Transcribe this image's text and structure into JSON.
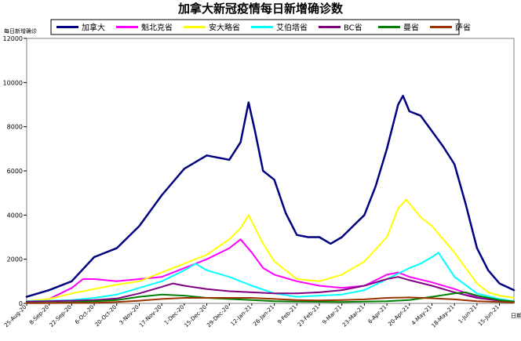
{
  "chart_data": {
    "type": "line",
    "title": "加拿大新冠疫情每日新增确诊数",
    "ylabel": "每日新增确诊",
    "xlabel": "日期",
    "ylim": [
      0,
      12000
    ],
    "yticks": [
      0,
      2000,
      4000,
      6000,
      8000,
      10000,
      12000
    ],
    "x_start": "25-Aug-20",
    "x_end": "24-Jun-21",
    "xtick_labels": [
      "25-Aug-20",
      "8-Sep-20",
      "22-Sep-20",
      "6-Oct-20",
      "20-Oct-20",
      "3-Nov-20",
      "17-Nov-20",
      "1-Dec-20",
      "15-Dec-20",
      "29-Dec-20",
      "12-Jan-21",
      "26-Jan-21",
      "9-Feb-21",
      "23-Feb-21",
      "9-Mar-21",
      "23-Mar-21",
      "6-Apr-21",
      "20-Apr-21",
      "4-May-21",
      "18-May-21",
      "1-Jun-21",
      "15-Jun-21"
    ],
    "grid": false,
    "legend_position": "top",
    "series": [
      {
        "name": "加拿大",
        "color": "#000080",
        "points": [
          [
            "25-Aug-20",
            300
          ],
          [
            "8-Sep-20",
            600
          ],
          [
            "22-Sep-20",
            1000
          ],
          [
            "6-Oct-20",
            2100
          ],
          [
            "20-Oct-20",
            2500
          ],
          [
            "3-Nov-20",
            3500
          ],
          [
            "17-Nov-20",
            4900
          ],
          [
            "1-Dec-20",
            6100
          ],
          [
            "15-Dec-20",
            6700
          ],
          [
            "29-Dec-20",
            6500
          ],
          [
            "5-Jan-21",
            7300
          ],
          [
            "10-Jan-21",
            9100
          ],
          [
            "14-Jan-21",
            7800
          ],
          [
            "19-Jan-21",
            6000
          ],
          [
            "26-Jan-21",
            5600
          ],
          [
            "2-Feb-21",
            4100
          ],
          [
            "9-Feb-21",
            3100
          ],
          [
            "16-Feb-21",
            3000
          ],
          [
            "23-Feb-21",
            3000
          ],
          [
            "2-Mar-21",
            2700
          ],
          [
            "9-Mar-21",
            3000
          ],
          [
            "16-Mar-21",
            3500
          ],
          [
            "23-Mar-21",
            4000
          ],
          [
            "30-Mar-21",
            5300
          ],
          [
            "6-Apr-21",
            7000
          ],
          [
            "13-Apr-21",
            9000
          ],
          [
            "16-Apr-21",
            9400
          ],
          [
            "20-Apr-21",
            8700
          ],
          [
            "27-Apr-21",
            8500
          ],
          [
            "4-May-21",
            7800
          ],
          [
            "11-May-21",
            7100
          ],
          [
            "18-May-21",
            6300
          ],
          [
            "25-May-21",
            4500
          ],
          [
            "1-Jun-21",
            2500
          ],
          [
            "8-Jun-21",
            1500
          ],
          [
            "15-Jun-21",
            900
          ],
          [
            "24-Jun-21",
            600
          ]
        ]
      },
      {
        "name": "魁北克省",
        "color": "#ff00ff",
        "points": [
          [
            "25-Aug-20",
            50
          ],
          [
            "8-Sep-20",
            200
          ],
          [
            "22-Sep-20",
            700
          ],
          [
            "29-Sep-20",
            1100
          ],
          [
            "6-Oct-20",
            1100
          ],
          [
            "20-Oct-20",
            1000
          ],
          [
            "3-Nov-20",
            1100
          ],
          [
            "17-Nov-20",
            1200
          ],
          [
            "1-Dec-20",
            1600
          ],
          [
            "15-Dec-20",
            2000
          ],
          [
            "29-Dec-20",
            2500
          ],
          [
            "5-Jan-21",
            2900
          ],
          [
            "12-Jan-21",
            2300
          ],
          [
            "19-Jan-21",
            1600
          ],
          [
            "26-Jan-21",
            1300
          ],
          [
            "9-Feb-21",
            1000
          ],
          [
            "23-Feb-21",
            800
          ],
          [
            "9-Mar-21",
            700
          ],
          [
            "23-Mar-21",
            800
          ],
          [
            "6-Apr-21",
            1300
          ],
          [
            "13-Apr-21",
            1400
          ],
          [
            "20-Apr-21",
            1200
          ],
          [
            "4-May-21",
            950
          ],
          [
            "18-May-21",
            650
          ],
          [
            "1-Jun-21",
            300
          ],
          [
            "15-Jun-21",
            150
          ],
          [
            "24-Jun-21",
            100
          ]
        ]
      },
      {
        "name": "安大略省",
        "color": "#ffff00",
        "points": [
          [
            "25-Aug-20",
            100
          ],
          [
            "8-Sep-20",
            200
          ],
          [
            "22-Sep-20",
            450
          ],
          [
            "6-Oct-20",
            650
          ],
          [
            "20-Oct-20",
            850
          ],
          [
            "3-Nov-20",
            1000
          ],
          [
            "17-Nov-20",
            1400
          ],
          [
            "1-Dec-20",
            1800
          ],
          [
            "15-Dec-20",
            2200
          ],
          [
            "29-Dec-20",
            2900
          ],
          [
            "5-Jan-21",
            3400
          ],
          [
            "10-Jan-21",
            4000
          ],
          [
            "19-Jan-21",
            2700
          ],
          [
            "26-Jan-21",
            1900
          ],
          [
            "9-Feb-21",
            1100
          ],
          [
            "23-Feb-21",
            1000
          ],
          [
            "9-Mar-21",
            1300
          ],
          [
            "23-Mar-21",
            1900
          ],
          [
            "6-Apr-21",
            3000
          ],
          [
            "13-Apr-21",
            4300
          ],
          [
            "18-Apr-21",
            4700
          ],
          [
            "27-Apr-21",
            3900
          ],
          [
            "4-May-21",
            3500
          ],
          [
            "11-May-21",
            2900
          ],
          [
            "18-May-21",
            2300
          ],
          [
            "25-May-21",
            1600
          ],
          [
            "1-Jun-21",
            900
          ],
          [
            "8-Jun-21",
            500
          ],
          [
            "15-Jun-21",
            350
          ],
          [
            "24-Jun-21",
            250
          ]
        ]
      },
      {
        "name": "艾伯塔省",
        "color": "#00ffff",
        "points": [
          [
            "25-Aug-20",
            100
          ],
          [
            "8-Sep-20",
            120
          ],
          [
            "22-Sep-20",
            150
          ],
          [
            "6-Oct-20",
            250
          ],
          [
            "20-Oct-20",
            400
          ],
          [
            "3-Nov-20",
            700
          ],
          [
            "17-Nov-20",
            1000
          ],
          [
            "1-Dec-20",
            1500
          ],
          [
            "8-Dec-20",
            1800
          ],
          [
            "15-Dec-20",
            1500
          ],
          [
            "29-Dec-20",
            1200
          ],
          [
            "12-Jan-21",
            800
          ],
          [
            "26-Jan-21",
            450
          ],
          [
            "9-Feb-21",
            300
          ],
          [
            "23-Feb-21",
            350
          ],
          [
            "9-Mar-21",
            400
          ],
          [
            "23-Mar-21",
            600
          ],
          [
            "6-Apr-21",
            1100
          ],
          [
            "20-Apr-21",
            1600
          ],
          [
            "27-Apr-21",
            1800
          ],
          [
            "4-May-21",
            2100
          ],
          [
            "8-May-21",
            2300
          ],
          [
            "18-May-21",
            1200
          ],
          [
            "1-Jun-21",
            450
          ],
          [
            "15-Jun-21",
            200
          ],
          [
            "24-Jun-21",
            100
          ]
        ]
      },
      {
        "name": "BC省",
        "color": "#800080",
        "points": [
          [
            "25-Aug-20",
            80
          ],
          [
            "8-Sep-20",
            100
          ],
          [
            "22-Sep-20",
            120
          ],
          [
            "6-Oct-20",
            150
          ],
          [
            "20-Oct-20",
            220
          ],
          [
            "3-Nov-20",
            450
          ],
          [
            "17-Nov-20",
            750
          ],
          [
            "24-Nov-20",
            900
          ],
          [
            "1-Dec-20",
            800
          ],
          [
            "15-Dec-20",
            650
          ],
          [
            "29-Dec-20",
            550
          ],
          [
            "12-Jan-21",
            500
          ],
          [
            "26-Jan-21",
            450
          ],
          [
            "9-Feb-21",
            450
          ],
          [
            "23-Feb-21",
            500
          ],
          [
            "9-Mar-21",
            600
          ],
          [
            "23-Mar-21",
            800
          ],
          [
            "6-Apr-21",
            1100
          ],
          [
            "13-Apr-21",
            1200
          ],
          [
            "20-Apr-21",
            1050
          ],
          [
            "4-May-21",
            800
          ],
          [
            "18-May-21",
            500
          ],
          [
            "1-Jun-21",
            250
          ],
          [
            "15-Jun-21",
            120
          ],
          [
            "24-Jun-21",
            80
          ]
        ]
      },
      {
        "name": "曼省",
        "color": "#008000",
        "points": [
          [
            "25-Aug-20",
            20
          ],
          [
            "8-Sep-20",
            30
          ],
          [
            "22-Sep-20",
            50
          ],
          [
            "6-Oct-20",
            100
          ],
          [
            "20-Oct-20",
            150
          ],
          [
            "3-Nov-20",
            300
          ],
          [
            "17-Nov-20",
            400
          ],
          [
            "1-Dec-20",
            350
          ],
          [
            "15-Dec-20",
            250
          ],
          [
            "29-Dec-20",
            200
          ],
          [
            "12-Jan-21",
            150
          ],
          [
            "26-Jan-21",
            100
          ],
          [
            "9-Feb-21",
            80
          ],
          [
            "23-Feb-21",
            70
          ],
          [
            "9-Mar-21",
            60
          ],
          [
            "23-Mar-21",
            80
          ],
          [
            "6-Apr-21",
            100
          ],
          [
            "20-Apr-21",
            150
          ],
          [
            "4-May-21",
            300
          ],
          [
            "18-May-21",
            450
          ],
          [
            "25-May-21",
            500
          ],
          [
            "1-Jun-21",
            350
          ],
          [
            "15-Jun-21",
            150
          ],
          [
            "24-Jun-21",
            80
          ]
        ]
      },
      {
        "name": "萨省",
        "color": "#993300",
        "points": [
          [
            "25-Aug-20",
            10
          ],
          [
            "8-Sep-20",
            15
          ],
          [
            "22-Sep-20",
            20
          ],
          [
            "6-Oct-20",
            30
          ],
          [
            "20-Oct-20",
            60
          ],
          [
            "3-Nov-20",
            120
          ],
          [
            "17-Nov-20",
            200
          ],
          [
            "1-Dec-20",
            250
          ],
          [
            "15-Dec-20",
            250
          ],
          [
            "29-Dec-20",
            250
          ],
          [
            "12-Jan-21",
            250
          ],
          [
            "26-Jan-21",
            200
          ],
          [
            "9-Feb-21",
            150
          ],
          [
            "23-Feb-21",
            130
          ],
          [
            "9-Mar-21",
            150
          ],
          [
            "23-Mar-21",
            180
          ],
          [
            "6-Apr-21",
            250
          ],
          [
            "20-Apr-21",
            270
          ],
          [
            "4-May-21",
            230
          ],
          [
            "18-May-21",
            180
          ],
          [
            "1-Jun-21",
            100
          ],
          [
            "15-Jun-21",
            60
          ],
          [
            "24-Jun-21",
            40
          ]
        ]
      }
    ]
  }
}
